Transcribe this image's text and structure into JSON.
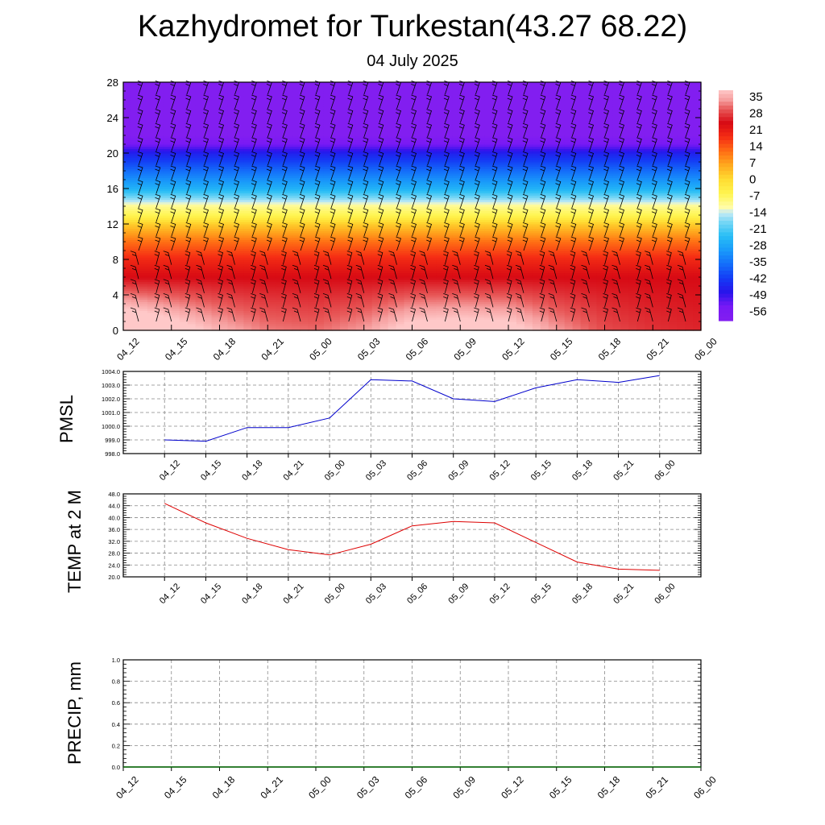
{
  "title": "Kazhydromet for Turkestan(43.27 68.22)",
  "subtitle": "04 July 2025",
  "time_labels": [
    "04_12",
    "04_15",
    "04_18",
    "04_21",
    "05_00",
    "05_03",
    "05_06",
    "05_09",
    "05_12",
    "05_15",
    "05_18",
    "05_21",
    "06_00"
  ],
  "chart_data": [
    {
      "type": "heatmap",
      "title": "Kazhydromet for Turkestan(43.27 68.22)",
      "subtitle": "04 July 2025",
      "categories": [
        "04_12",
        "04_15",
        "04_18",
        "04_21",
        "05_00",
        "05_03",
        "05_06",
        "05_09",
        "05_12",
        "05_15",
        "05_18",
        "05_21",
        "06_00"
      ],
      "ylim": [
        0,
        28
      ],
      "yticks": [
        0,
        4,
        8,
        12,
        16,
        20,
        24,
        28
      ],
      "colorbar_ticks": [
        35,
        28,
        21,
        14,
        7,
        0,
        -7,
        -14,
        -21,
        -28,
        -35,
        -42,
        -49,
        -56
      ],
      "colorbar_range": [
        -60,
        38
      ],
      "temperature_by_height": {
        "heights": [
          0,
          2,
          4,
          6,
          8,
          10,
          12,
          13,
          14,
          16,
          18,
          20,
          21,
          22,
          24,
          28
        ],
        "values": [
          36,
          32,
          28,
          24,
          19,
          12,
          2,
          -6,
          -10,
          -26,
          -36,
          -46,
          -54,
          -60,
          -60,
          -60
        ]
      },
      "surface_temperature_by_time": [
        44,
        38,
        32,
        28,
        27,
        30,
        37,
        38,
        37,
        30,
        25,
        23,
        22
      ],
      "wind_barbs": true,
      "grid": false
    },
    {
      "type": "line",
      "ylabel": "PMSL",
      "categories": [
        "04_12",
        "04_15",
        "04_18",
        "04_21",
        "05_00",
        "05_03",
        "05_06",
        "05_09",
        "05_12",
        "05_15",
        "05_18",
        "05_21",
        "06_00"
      ],
      "ylim": [
        998.0,
        1004.0
      ],
      "yticks": [
        "998.0",
        "999.0",
        "1000.0",
        "1001.0",
        "1002.0",
        "1003.0",
        "1004.0"
      ],
      "color": "#0000cc",
      "series": [
        {
          "values": [
            999.0,
            998.9,
            999.9,
            999.9,
            1000.6,
            1003.4,
            1003.3,
            1002.0,
            1001.8,
            1002.8,
            1003.4,
            1003.2,
            1003.7
          ]
        }
      ],
      "grid": true
    },
    {
      "type": "line",
      "ylabel": "TEMP at 2 M",
      "categories": [
        "04_12",
        "04_15",
        "04_18",
        "04_21",
        "05_00",
        "05_03",
        "05_06",
        "05_09",
        "05_12",
        "05_15",
        "05_18",
        "05_21",
        "06_00"
      ],
      "ylim": [
        20.0,
        48.0
      ],
      "yticks": [
        "20.0",
        "24.0",
        "28.0",
        "32.0",
        "36.0",
        "40.0",
        "44.0",
        "48.0"
      ],
      "color": "#dd0000",
      "series": [
        {
          "values": [
            44.8,
            38.2,
            33.0,
            29.2,
            27.4,
            31.0,
            37.2,
            38.7,
            38.2,
            31.6,
            25.0,
            22.6,
            22.2
          ]
        }
      ],
      "grid": true
    },
    {
      "type": "line",
      "ylabel": "PRECIP, mm",
      "categories": [
        "04_12",
        "04_15",
        "04_18",
        "04_21",
        "05_00",
        "05_03",
        "05_06",
        "05_09",
        "05_12",
        "05_15",
        "05_18",
        "05_21",
        "06_00"
      ],
      "ylim": [
        0.0,
        1.0
      ],
      "yticks": [
        "0.0",
        "0.2",
        "0.4",
        "0.6",
        "0.8",
        "1.0"
      ],
      "color": "#006600",
      "series": [
        {
          "values": [
            0,
            0,
            0,
            0,
            0,
            0,
            0,
            0,
            0,
            0,
            0,
            0,
            0
          ]
        }
      ],
      "grid": true
    }
  ]
}
